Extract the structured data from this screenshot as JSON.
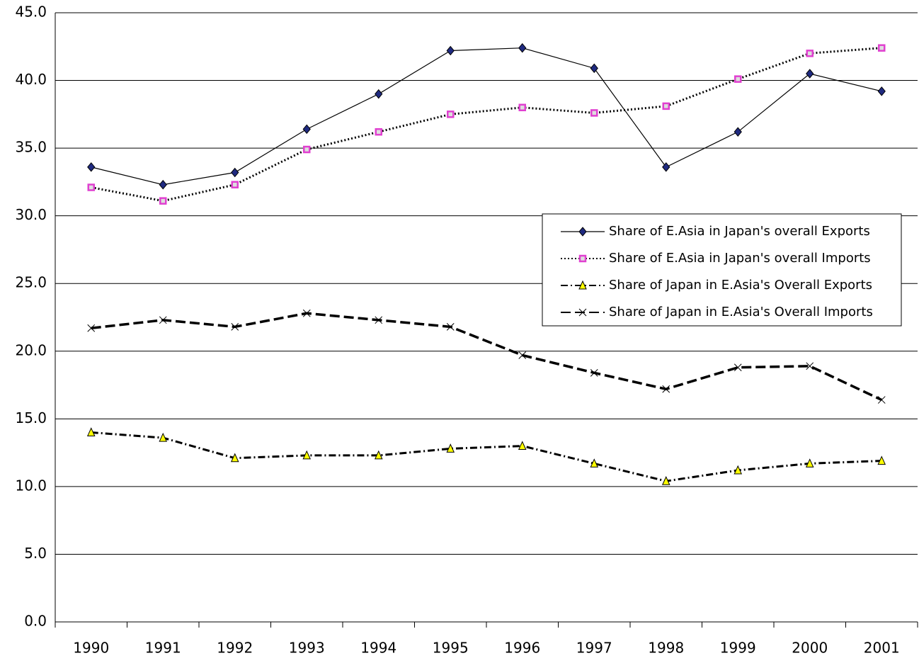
{
  "chart_data": {
    "type": "line",
    "categories": [
      "1990",
      "1991",
      "1992",
      "1993",
      "1994",
      "1995",
      "1996",
      "1997",
      "1998",
      "1999",
      "2000",
      "2001"
    ],
    "series": [
      {
        "name": "Share of E.Asia in Japan's overall Exports",
        "color": "#1f2a80",
        "values": [
          33.6,
          32.3,
          33.2,
          36.4,
          39.0,
          42.2,
          42.4,
          40.9,
          33.6,
          36.2,
          40.5,
          39.2
        ]
      },
      {
        "name": "Share of E.Asia in Japan's overall Imports",
        "color": "#e040d0",
        "values": [
          32.1,
          31.1,
          32.3,
          34.9,
          36.2,
          37.5,
          38.0,
          37.6,
          38.1,
          40.1,
          42.0,
          42.4
        ]
      },
      {
        "name": "Share of Japan in E.Asia's Overall Exports",
        "color": "#ffff00",
        "values": [
          14.0,
          13.6,
          12.1,
          12.3,
          12.3,
          12.8,
          13.0,
          11.7,
          10.4,
          11.2,
          11.7,
          11.9
        ]
      },
      {
        "name": "Share of Japan in E.Asia's Overall Imports",
        "color": "#000000",
        "values": [
          21.7,
          22.3,
          21.8,
          22.8,
          22.3,
          21.8,
          19.7,
          18.4,
          17.2,
          18.8,
          18.9,
          16.4
        ]
      }
    ],
    "ylim": [
      0,
      45
    ],
    "yticks": [
      {
        "value": 0,
        "label": "0.0"
      },
      {
        "value": 5,
        "label": "5.0"
      },
      {
        "value": 10,
        "label": "10.0"
      },
      {
        "value": 15,
        "label": "15.0"
      },
      {
        "value": 20,
        "label": "20.0"
      },
      {
        "value": 25,
        "label": "25.0"
      },
      {
        "value": 30,
        "label": "30.0"
      },
      {
        "value": 35,
        "label": "35.0"
      },
      {
        "value": 40,
        "label": "40.0"
      },
      {
        "value": 45,
        "label": "45.0"
      }
    ],
    "grid": true
  }
}
